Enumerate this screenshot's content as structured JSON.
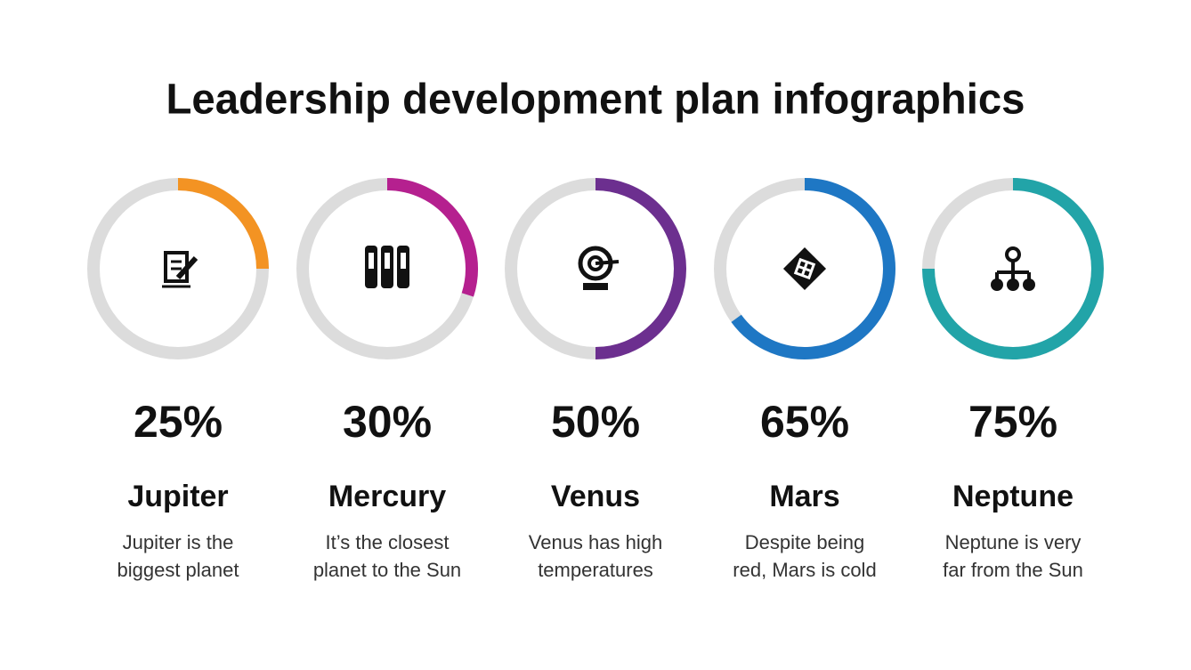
{
  "title": "Leadership development plan infographics",
  "items": [
    {
      "value": 25,
      "value_label": "25%",
      "name": "Jupiter",
      "description": [
        "Jupiter is the",
        "biggest planet"
      ],
      "color": "#f39323"
    },
    {
      "value": 30,
      "value_label": "30%",
      "name": "Mercury",
      "description": [
        "It’s the closest",
        "planet to the Sun"
      ],
      "color": "#b5208f"
    },
    {
      "value": 50,
      "value_label": "50%",
      "name": "Venus",
      "description": [
        "Venus has high",
        "temperatures"
      ],
      "color": "#6c2f8f"
    },
    {
      "value": 65,
      "value_label": "65%",
      "name": "Mars",
      "description": [
        "Despite being",
        "red, Mars is cold"
      ],
      "color": "#1e77c4"
    },
    {
      "value": 75,
      "value_label": "75%",
      "name": "Neptune",
      "description": [
        "Neptune is very",
        "far from the Sun"
      ],
      "color": "#22a4a8"
    }
  ]
}
